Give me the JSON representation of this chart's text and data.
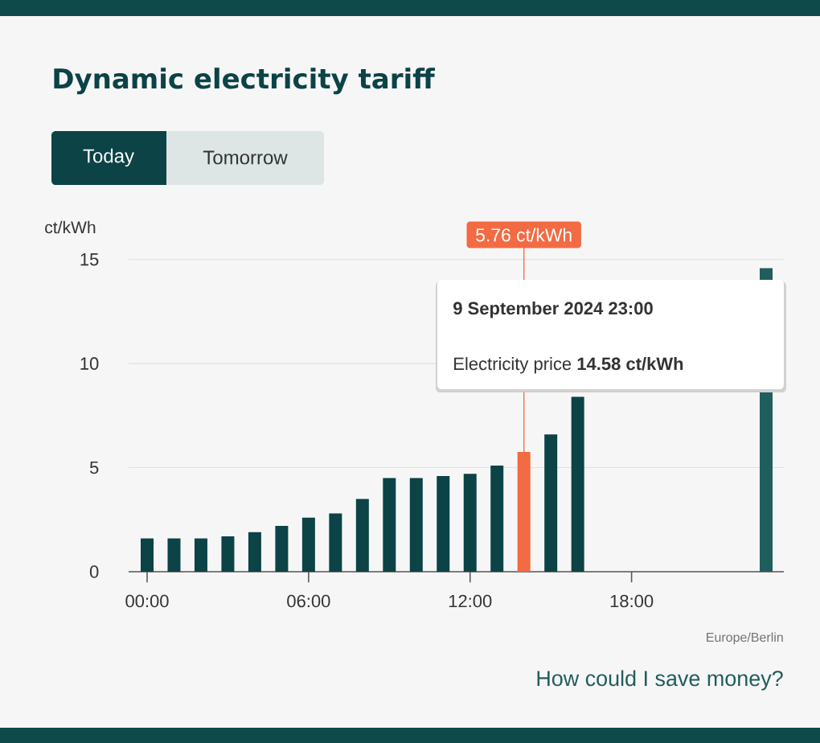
{
  "chart_data": {
    "type": "bar",
    "title": "Dynamic electricity tariff",
    "ylabel": "ct/kWh",
    "categories": [
      "00:00",
      null,
      null,
      null,
      null,
      null,
      "06:00",
      null,
      null,
      null,
      null,
      null,
      "12:00",
      null,
      null,
      null,
      null,
      null,
      "18:00",
      null,
      null,
      null,
      null,
      null
    ],
    "values": [
      1.6,
      1.6,
      1.6,
      1.7,
      1.9,
      2.2,
      2.6,
      2.8,
      3.5,
      4.5,
      4.5,
      4.6,
      4.7,
      5.1,
      5.76,
      6.6,
      8.4,
      null,
      null,
      null,
      null,
      null,
      null,
      14.58
    ],
    "colors": [
      "#0b4347",
      "#0b4347",
      "#0b4347",
      "#0b4347",
      "#0b4347",
      "#0b4347",
      "#0b4347",
      "#0b4347",
      "#0b4347",
      "#0b4347",
      "#0b4347",
      "#0b4347",
      "#0b4347",
      "#0b4347",
      "#f26b43",
      "#0b4347",
      "#0b4347",
      "#0b4347",
      "#0b4347",
      "#0b4347",
      "#0b4347",
      "#0b4347",
      "#0b4347",
      "#1f5e5c"
    ],
    "ylim": [
      0,
      15
    ],
    "yticks": [
      0,
      5,
      10,
      15
    ],
    "grid": "y",
    "annotations": [
      "Today",
      "Tomorrow",
      {
        "text": "5.76 ct/kWh",
        "y": 5.76
      },
      "9 September 2024 23:00",
      "Electricity price **14.58 ct/kWh**",
      "Europe/Berlin",
      "How could I save money?"
    ]
  }
}
